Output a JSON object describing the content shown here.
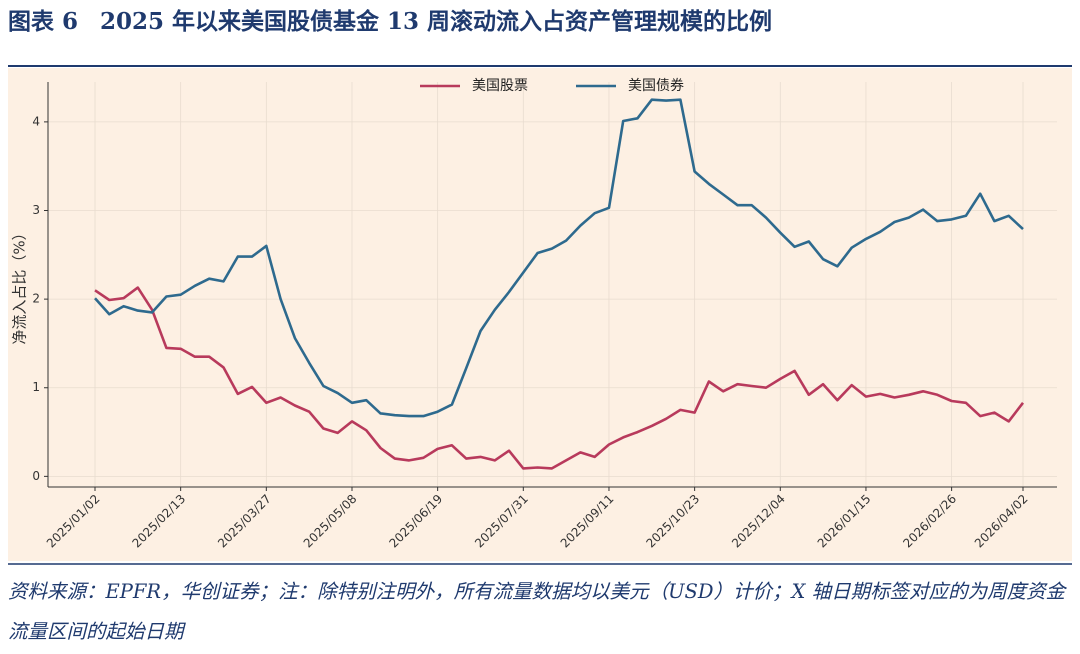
{
  "figure_label": "图表 6",
  "source_note": "资料来源：EPFR，华创证券；注：除特别注明外，所有流量数据均以美元（USD）计价；X 轴日期标签对应的为周度资金流量区间的起始日期",
  "chart_data": {
    "type": "line",
    "title": "2025 年以来美国股债基金 13 周滚动流入占资产管理规模的比例",
    "y_label": "净流入占比（%）",
    "x": [
      "2025/01/02",
      "2025/01/09",
      "2025/01/16",
      "2025/01/23",
      "2025/01/30",
      "2025/02/06",
      "2025/02/13",
      "2025/02/20",
      "2025/02/27",
      "2025/03/06",
      "2025/03/13",
      "2025/03/20",
      "2025/03/27",
      "2025/04/03",
      "2025/04/10",
      "2025/04/17",
      "2025/04/24",
      "2025/05/01",
      "2025/05/08",
      "2025/05/15",
      "2025/05/22",
      "2025/05/29",
      "2025/06/05",
      "2025/06/12",
      "2025/06/19",
      "2025/06/26",
      "2025/07/03",
      "2025/07/10",
      "2025/07/17",
      "2025/07/24",
      "2025/07/31",
      "2025/08/07",
      "2025/08/14",
      "2025/08/21",
      "2025/08/28",
      "2025/09/04",
      "2025/09/11",
      "2025/09/18",
      "2025/09/25",
      "2025/10/02",
      "2025/10/09",
      "2025/10/16",
      "2025/10/23",
      "2025/10/30",
      "2025/11/06",
      "2025/11/13",
      "2025/11/20",
      "2025/11/27",
      "2025/12/04",
      "2025/12/11",
      "2025/12/18",
      "2025/12/25",
      "2026/01/01",
      "2026/01/08",
      "2026/01/15",
      "2026/01/22",
      "2026/01/29",
      "2026/02/05",
      "2026/02/12",
      "2026/02/19",
      "2026/02/26",
      "2026/03/05",
      "2026/03/12",
      "2026/03/19",
      "2026/03/26",
      "2026/04/02"
    ],
    "xticks": [
      "2025/01/02",
      "2025/02/13",
      "2025/03/27",
      "2025/05/08",
      "2025/06/19",
      "2025/07/31",
      "2025/09/11",
      "2025/10/23",
      "2025/12/04",
      "2026/01/15",
      "2026/02/26",
      "2026/04/02"
    ],
    "series": [
      {
        "name": "美国股票",
        "color": "#b83a5c",
        "values": [
          2.1,
          1.99,
          2.01,
          2.13,
          1.88,
          1.45,
          1.44,
          1.35,
          1.35,
          1.23,
          0.93,
          1.01,
          0.83,
          0.89,
          0.8,
          0.73,
          0.54,
          0.49,
          0.62,
          0.52,
          0.32,
          0.2,
          0.18,
          0.21,
          0.31,
          0.35,
          0.2,
          0.22,
          0.18,
          0.29,
          0.09,
          0.1,
          0.09,
          0.18,
          0.27,
          0.22,
          0.36,
          0.44,
          0.5,
          0.57,
          0.65,
          0.75,
          0.72,
          1.07,
          0.96,
          1.04,
          1.02,
          1.0,
          1.1,
          1.19,
          0.92,
          1.04,
          0.86,
          1.03,
          0.9,
          0.93,
          0.89,
          0.92,
          0.96,
          0.92,
          0.85,
          0.83,
          0.68,
          0.72,
          0.62,
          0.83
        ]
      },
      {
        "name": "美国债券",
        "color": "#2e6a8e",
        "values": [
          2.01,
          1.83,
          1.92,
          1.87,
          1.85,
          2.03,
          2.05,
          2.15,
          2.23,
          2.2,
          2.48,
          2.48,
          2.6,
          2.0,
          1.56,
          1.28,
          1.02,
          0.94,
          0.83,
          0.86,
          0.71,
          0.69,
          0.68,
          0.68,
          0.73,
          0.81,
          1.22,
          1.64,
          1.88,
          2.08,
          2.3,
          2.52,
          2.57,
          2.66,
          2.83,
          2.97,
          3.03,
          4.01,
          4.04,
          4.25,
          4.24,
          4.25,
          3.44,
          3.3,
          3.18,
          3.06,
          3.06,
          2.92,
          2.75,
          2.59,
          2.65,
          2.45,
          2.37,
          2.58,
          2.68,
          2.76,
          2.87,
          2.92,
          3.01,
          2.88,
          2.9,
          2.94,
          3.19,
          2.88,
          2.94,
          2.79
        ]
      }
    ],
    "ylim": [
      -0.12,
      4.45
    ],
    "yticks": [
      0,
      1,
      2,
      3,
      4
    ],
    "grid": true,
    "legend": "top"
  }
}
